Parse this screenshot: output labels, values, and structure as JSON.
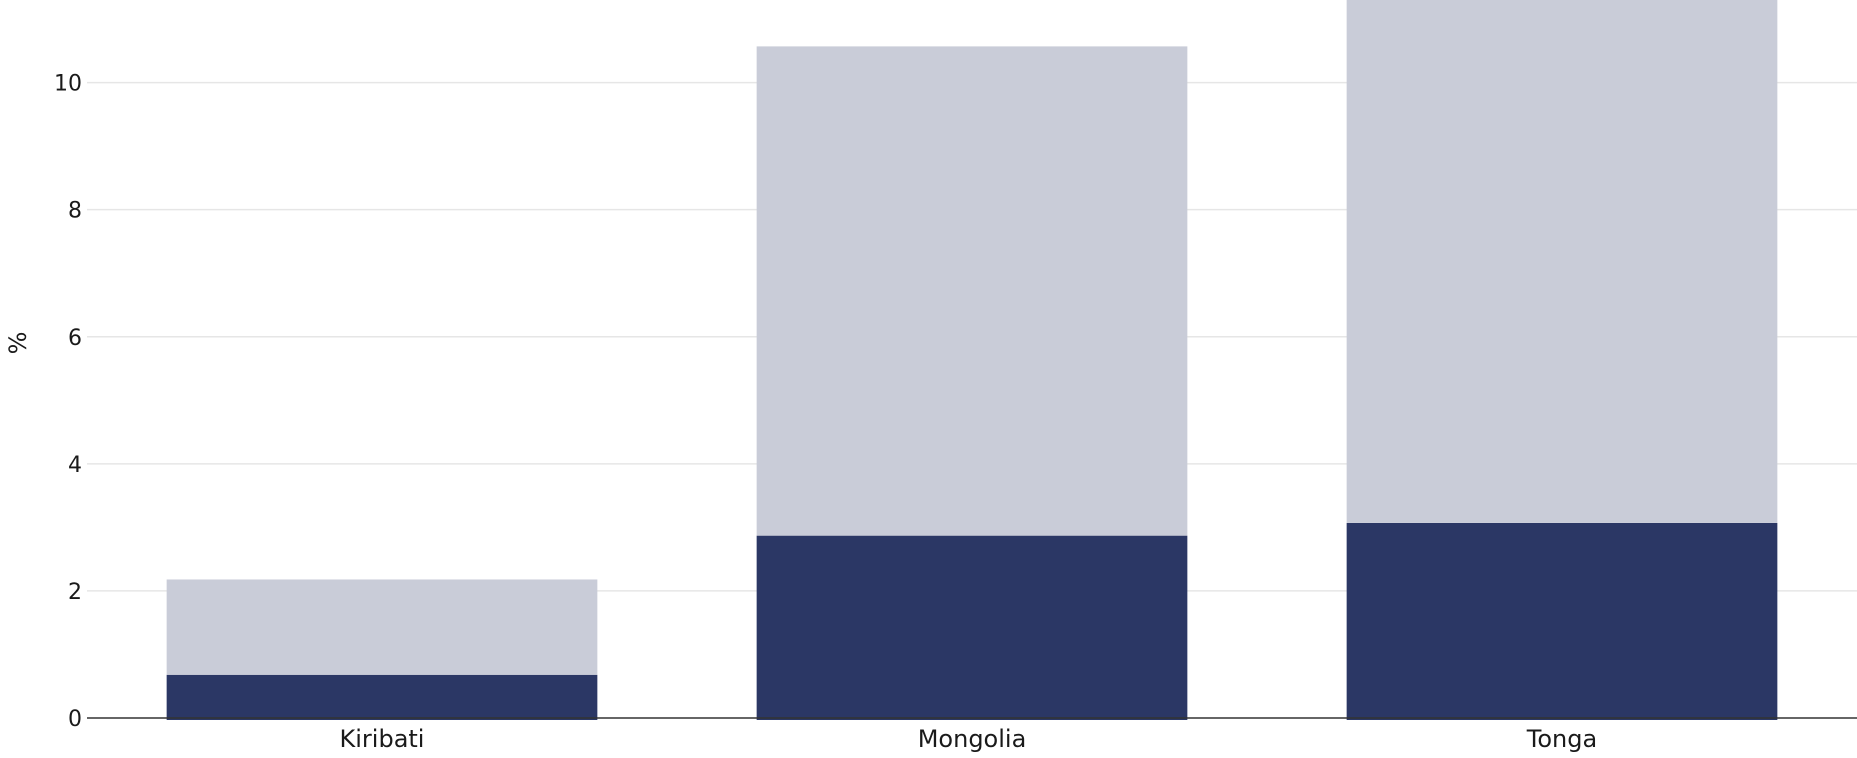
{
  "chart_data": {
    "type": "bar",
    "stacked": true,
    "categories": [
      "Kiribati",
      "Mongolia",
      "Tonga"
    ],
    "series": [
      {
        "values": [
          0.68,
          2.87,
          3.07
        ],
        "color": "#2b3765"
      },
      {
        "values": [
          1.5,
          7.7,
          8.23
        ],
        "color": "#c9ccd8"
      }
    ],
    "ylabel": "%",
    "ylim": [
      0,
      11.3
    ],
    "yticks": [
      0,
      2,
      4,
      6,
      8,
      10
    ],
    "grid": true
  }
}
